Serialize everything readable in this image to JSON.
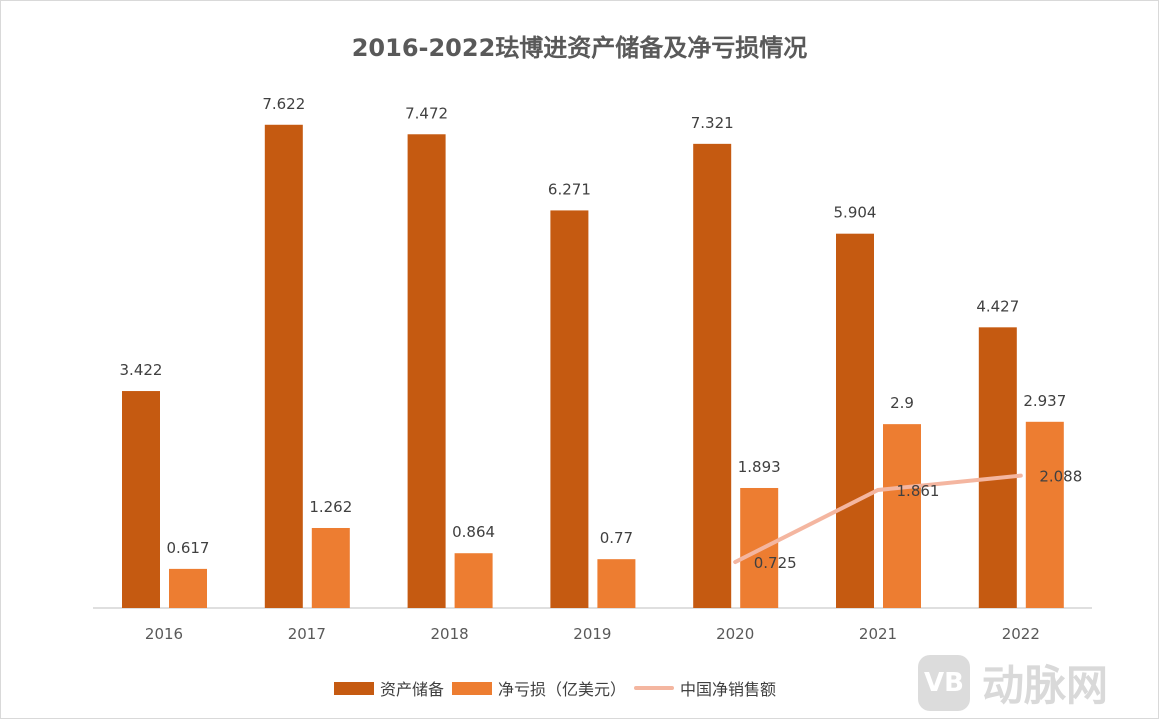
{
  "chart_data": {
    "type": "bar",
    "title": "2016-2022珐博进资产储备及净亏损情况",
    "categories": [
      "2016",
      "2017",
      "2018",
      "2019",
      "2020",
      "2021",
      "2022"
    ],
    "series": [
      {
        "name": "资产储备",
        "type": "bar",
        "color": "#c55a11",
        "values": [
          3.422,
          7.622,
          7.472,
          6.271,
          7.321,
          5.904,
          4.427
        ],
        "labels": [
          "3.422",
          "7.622",
          "7.472",
          "6.271",
          "7.321",
          "5.904",
          "4.427"
        ]
      },
      {
        "name": "净亏损（亿美元）",
        "type": "bar",
        "color": "#ed7d31",
        "values": [
          0.617,
          1.262,
          0.864,
          0.77,
          1.893,
          2.9,
          2.937
        ],
        "labels": [
          "0.617",
          "1.262",
          "0.864",
          "0.77",
          "1.893",
          "2.9",
          "2.937"
        ]
      },
      {
        "name": "中国净销售额",
        "type": "line",
        "color": "#f4b6a0",
        "values": [
          null,
          null,
          null,
          null,
          0.725,
          1.861,
          2.088
        ],
        "labels": [
          "",
          "",
          "",
          "",
          "0.725",
          "1.861",
          "2.088"
        ]
      }
    ],
    "ylim": [
      0,
      8
    ],
    "grid": false,
    "legend": "bottom"
  },
  "watermark": {
    "logo": "VB",
    "text": "动脉网"
  }
}
